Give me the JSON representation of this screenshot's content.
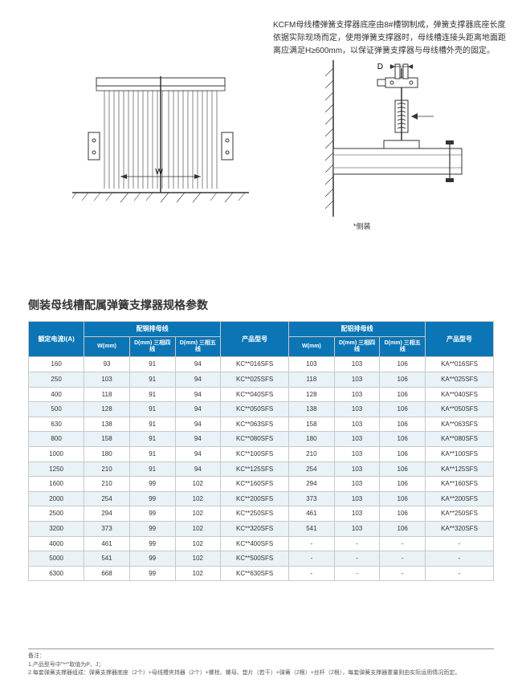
{
  "intro": "KCFM母线槽弹簧支撑器底座由8#槽钢制成，弹簧支撑器底座长度依据实际现场而定，使用弹簧支撑器时，母线槽连接头距离地面距离应满足H≥600mm，以保证弹簧支撑器与母线槽外壳的固定。",
  "diagram": {
    "label_w": "W",
    "label_d": "D",
    "arrow_glyph": "→",
    "caption": "*侧装"
  },
  "section_title": "侧装母线槽配属弹簧支撑器规格参数",
  "colors": {
    "header_bg": "#0b75b5",
    "header_fg": "#ffffff",
    "row_alt": "#e9f2f7",
    "border": "#c8c8c8"
  },
  "table": {
    "headers": {
      "rated_current": "额定电流I(A)",
      "copper": "配铜排母线",
      "aluminum": "配铝排母线",
      "model": "产品型号",
      "w": "W(mm)",
      "d4": "D(mm)\n三相四线",
      "d5": "D(mm)\n三相五线"
    },
    "rows": [
      {
        "i": "160",
        "cw": "93",
        "cd4": "91",
        "cd5": "94",
        "cm": "KC**016SFS",
        "aw": "103",
        "ad4": "103",
        "ad5": "106",
        "am": "KA**016SFS"
      },
      {
        "i": "250",
        "cw": "103",
        "cd4": "91",
        "cd5": "94",
        "cm": "KC**025SFS",
        "aw": "118",
        "ad4": "103",
        "ad5": "106",
        "am": "KA**025SFS"
      },
      {
        "i": "400",
        "cw": "118",
        "cd4": "91",
        "cd5": "94",
        "cm": "KC**040SFS",
        "aw": "128",
        "ad4": "103",
        "ad5": "106",
        "am": "KA**040SFS"
      },
      {
        "i": "500",
        "cw": "128",
        "cd4": "91",
        "cd5": "94",
        "cm": "KC**050SFS",
        "aw": "138",
        "ad4": "103",
        "ad5": "106",
        "am": "KA**050SFS"
      },
      {
        "i": "630",
        "cw": "138",
        "cd4": "91",
        "cd5": "94",
        "cm": "KC**063SFS",
        "aw": "158",
        "ad4": "103",
        "ad5": "106",
        "am": "KA**063SFS"
      },
      {
        "i": "800",
        "cw": "158",
        "cd4": "91",
        "cd5": "94",
        "cm": "KC**080SFS",
        "aw": "180",
        "ad4": "103",
        "ad5": "106",
        "am": "KA**080SFS"
      },
      {
        "i": "1000",
        "cw": "180",
        "cd4": "91",
        "cd5": "94",
        "cm": "KC**100SFS",
        "aw": "210",
        "ad4": "103",
        "ad5": "106",
        "am": "KA**100SFS"
      },
      {
        "i": "1250",
        "cw": "210",
        "cd4": "91",
        "cd5": "94",
        "cm": "KC**125SFS",
        "aw": "254",
        "ad4": "103",
        "ad5": "106",
        "am": "KA**125SFS"
      },
      {
        "i": "1600",
        "cw": "210",
        "cd4": "99",
        "cd5": "102",
        "cm": "KC**160SFS",
        "aw": "294",
        "ad4": "103",
        "ad5": "106",
        "am": "KA**160SFS"
      },
      {
        "i": "2000",
        "cw": "254",
        "cd4": "99",
        "cd5": "102",
        "cm": "KC**200SFS",
        "aw": "373",
        "ad4": "103",
        "ad5": "106",
        "am": "KA**200SFS"
      },
      {
        "i": "2500",
        "cw": "294",
        "cd4": "99",
        "cd5": "102",
        "cm": "KC**250SFS",
        "aw": "461",
        "ad4": "103",
        "ad5": "106",
        "am": "KA**250SFS"
      },
      {
        "i": "3200",
        "cw": "373",
        "cd4": "99",
        "cd5": "102",
        "cm": "KC**320SFS",
        "aw": "541",
        "ad4": "103",
        "ad5": "106",
        "am": "KA**320SFS"
      },
      {
        "i": "4000",
        "cw": "461",
        "cd4": "99",
        "cd5": "102",
        "cm": "KC**400SFS",
        "aw": "-",
        "ad4": "-",
        "ad5": "-",
        "am": "-"
      },
      {
        "i": "5000",
        "cw": "541",
        "cd4": "99",
        "cd5": "102",
        "cm": "KC**500SFS",
        "aw": "-",
        "ad4": "-",
        "ad5": "-",
        "am": "-"
      },
      {
        "i": "6300",
        "cw": "668",
        "cd4": "99",
        "cd5": "102",
        "cm": "KC**630SFS",
        "aw": "-",
        "ad4": "-",
        "ad5": "-",
        "am": "-"
      }
    ]
  },
  "notes": {
    "title": "备注：",
    "line1": "1.产品型号中\"**\"取值为P、J；",
    "line2": "2.每套弹簧支撑器组成：弹簧支撑器底座（2个）+母线槽夹持器（2个）+螺栓、螺母、垫片（若干）+弹簧（2根）+丝杆（2根），每套弹簧支撑器重量则由实际运用情况而定。"
  }
}
